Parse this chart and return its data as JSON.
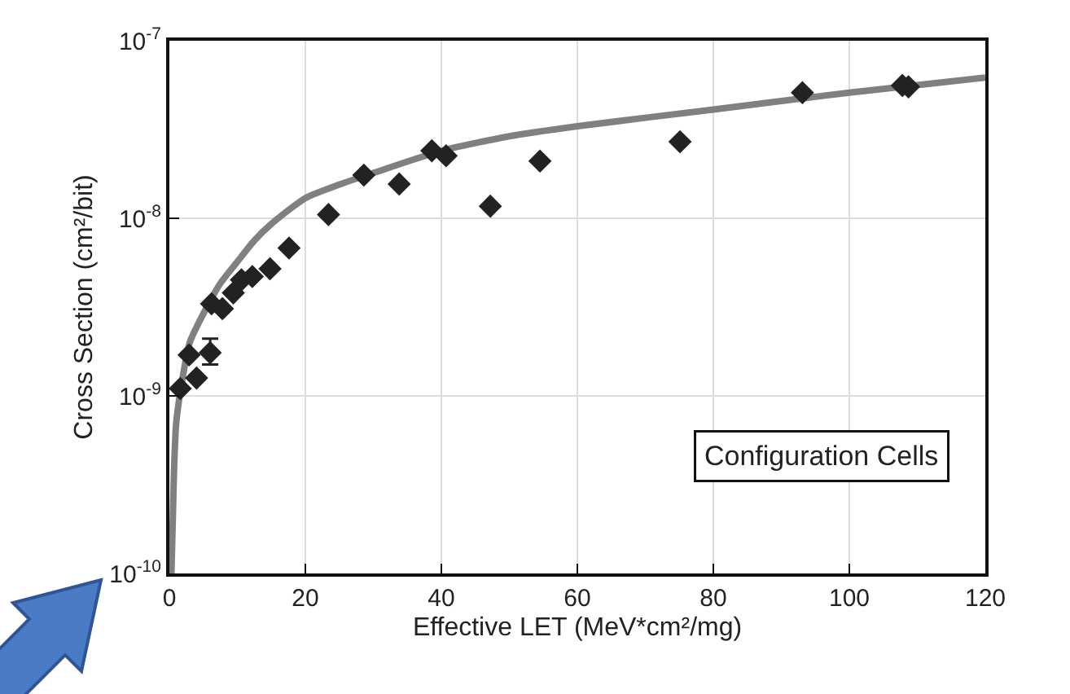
{
  "chart_data": {
    "type": "scatter",
    "xlabel": "Effective LET (MeV*cm²/mg)",
    "ylabel": "Cross Section (cm²/bit)",
    "annotations": [
      "Configuration Cells"
    ],
    "log": "y",
    "grid": true,
    "xlim": [
      0,
      120
    ],
    "xticks": [
      0,
      20,
      40,
      60,
      80,
      100,
      120
    ],
    "ylim": [
      1e-10,
      1e-07
    ],
    "yticks": [
      {
        "value": 1e-10,
        "label": "10$^{-10}$"
      },
      {
        "value": 1e-09,
        "label": "10$^{-9}$"
      },
      {
        "value": 1e-08,
        "label": "10$^{-8}$"
      },
      {
        "value": 1e-07,
        "label": "10$^{-7}$"
      }
    ],
    "series": [
      {
        "marker": "diamond",
        "color": "#222222",
        "x": [
          1.6,
          2.9,
          4.0,
          6.0,
          6.2,
          7.8,
          9.4,
          10.6,
          12.2,
          14.8,
          17.6,
          23.4,
          28.6,
          33.8,
          38.6,
          40.7,
          47.2,
          54.5,
          75.1,
          93.1,
          107.8,
          108.7
        ],
        "values": [
          1.1e-09,
          1.7e-09,
          1.26e-09,
          1.75e-09,
          3.3e-09,
          3.1e-09,
          3.8e-09,
          4.5e-09,
          4.7e-09,
          5.2e-09,
          6.8e-09,
          1.05e-08,
          1.75e-08,
          1.56e-08,
          2.4e-08,
          2.25e-08,
          1.17e-08,
          2.1e-08,
          2.7e-08,
          5.1e-08,
          5.6e-08,
          5.5e-08
        ],
        "errors": [
          null,
          null,
          null,
          [
            1.5e-09,
            2.1e-09
          ],
          null,
          null,
          null,
          null,
          null,
          null,
          null,
          null,
          null,
          null,
          null,
          null,
          null,
          null,
          null,
          null,
          null,
          null
        ]
      },
      {
        "type": "line",
        "color": "#808080",
        "x": [
          0.3,
          0.5,
          0.7,
          1,
          2,
          3,
          5,
          7.5,
          10,
          12.5,
          15,
          20,
          25,
          30,
          40,
          50,
          60,
          80,
          100,
          120
        ],
        "values": [
          1e-10,
          2e-10,
          4e-10,
          7e-10,
          1.3e-09,
          2e-09,
          2.9e-09,
          4.3e-09,
          5.7e-09,
          7.5e-09,
          9.3e-09,
          1.3e-08,
          1.55e-08,
          1.8e-08,
          2.4e-08,
          2.9e-08,
          3.3e-08,
          4.1e-08,
          5.1e-08,
          6.2e-08
        ]
      }
    ]
  }
}
